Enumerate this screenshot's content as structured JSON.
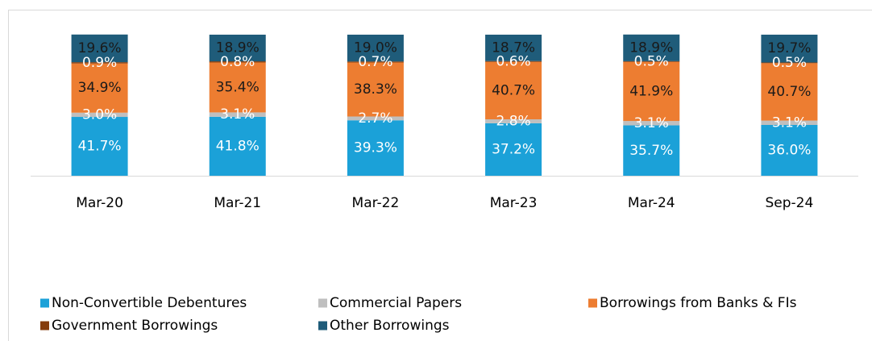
{
  "chart_data": {
    "type": "stacked_bar",
    "categories": [
      "Mar-20",
      "Mar-21",
      "Mar-22",
      "Mar-23",
      "Mar-24",
      "Sep-24"
    ],
    "ylim": [
      0,
      100
    ],
    "series": [
      {
        "name": "Non-Convertible Debentures",
        "color": "#1ba1d8",
        "label_color": "#ffffff",
        "values": [
          41.7,
          41.8,
          39.3,
          37.2,
          35.7,
          36.0
        ],
        "value_labels": [
          "41.7%",
          "41.8%",
          "39.3%",
          "37.2%",
          "35.7%",
          "36.0%"
        ]
      },
      {
        "name": "Commercial Papers",
        "color": "#bfbfbf",
        "label_color": "#ffffff",
        "values": [
          3.0,
          3.1,
          2.7,
          2.8,
          3.1,
          3.1
        ],
        "value_labels": [
          "3.0%",
          "3.1%",
          "2.7%",
          "2.8%",
          "3.1%",
          "3.1%"
        ]
      },
      {
        "name": "Borrowings from Banks & FIs",
        "color": "#ed7d31",
        "label_color": "#1a1a1a",
        "values": [
          34.9,
          35.4,
          38.3,
          40.7,
          41.9,
          40.7
        ],
        "value_labels": [
          "34.9%",
          "35.4%",
          "38.3%",
          "40.7%",
          "41.9%",
          "40.7%"
        ]
      },
      {
        "name": "Government Borrowings",
        "color": "#843c0c",
        "label_color": "#ffffff",
        "values": [
          0.9,
          0.8,
          0.7,
          0.6,
          0.5,
          0.5
        ],
        "value_labels": [
          "0.9%",
          "0.8%",
          "0.7%",
          "0.6%",
          "0.5%",
          "0.5%"
        ]
      },
      {
        "name": "Other Borrowings",
        "color": "#1f5c7a",
        "label_color": "#1a1a1a",
        "values": [
          19.6,
          18.9,
          19.0,
          18.7,
          18.9,
          19.7
        ],
        "value_labels": [
          "19.6%",
          "18.9%",
          "19.0%",
          "18.7%",
          "18.9%",
          "19.7%"
        ]
      }
    ]
  }
}
